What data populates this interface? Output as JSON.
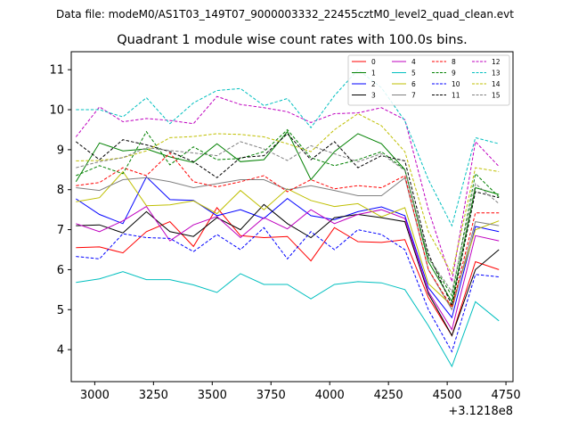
{
  "chart_data": {
    "type": "line",
    "suptitle": "Data file: modeM0/AS1T03_149T07_9000003332_22455cztM0_level2_quad_clean.evt",
    "title": "Quadrant 1 module wise count rates with 100.0s bins.",
    "xlabel": "",
    "ylabel": "",
    "x_offset_label": "+3.1218e8",
    "xlim": [
      2900,
      4780
    ],
    "ylim": [
      3.2,
      11.45
    ],
    "xticks": [
      3000,
      3250,
      3500,
      3750,
      4000,
      4250,
      4500,
      4750
    ],
    "yticks": [
      4,
      5,
      6,
      7,
      8,
      9,
      10,
      11
    ],
    "grid": false,
    "legend_position": "top-right",
    "x": [
      2920,
      3020,
      3120,
      3220,
      3320,
      3420,
      3520,
      3620,
      3720,
      3820,
      3920,
      4020,
      4120,
      4220,
      4320,
      4420,
      4520,
      4620,
      4720
    ],
    "series": [
      {
        "name": "0",
        "color": "#ff0000",
        "dash": false,
        "values": [
          6.55,
          6.57,
          6.42,
          6.95,
          7.2,
          6.58,
          7.55,
          6.85,
          6.8,
          6.83,
          6.22,
          7.05,
          6.7,
          6.68,
          6.75,
          5.3,
          4.35,
          6.2,
          6.0
        ]
      },
      {
        "name": "1",
        "color": "#008000",
        "dash": false,
        "values": [
          8.2,
          9.17,
          8.97,
          9.02,
          8.82,
          8.68,
          9.15,
          8.7,
          8.75,
          9.45,
          8.25,
          8.95,
          9.4,
          9.15,
          8.5,
          6.2,
          5.2,
          8.05,
          7.88
        ]
      },
      {
        "name": "2",
        "color": "#0000ff",
        "dash": false,
        "values": [
          7.77,
          7.38,
          7.15,
          8.32,
          7.75,
          7.73,
          7.35,
          7.5,
          7.28,
          7.78,
          7.35,
          7.25,
          7.45,
          7.57,
          7.35,
          5.55,
          4.8,
          7.08,
          6.95
        ]
      },
      {
        "name": "3",
        "color": "#000000",
        "dash": false,
        "values": [
          7.1,
          7.12,
          6.92,
          7.45,
          6.95,
          6.83,
          7.3,
          7.0,
          7.63,
          7.15,
          6.8,
          7.3,
          7.38,
          7.3,
          7.2,
          5.4,
          4.35,
          6.0,
          6.5
        ]
      },
      {
        "name": "4",
        "color": "#bf00bf",
        "dash": false,
        "values": [
          7.15,
          6.95,
          7.22,
          7.58,
          6.72,
          7.12,
          7.33,
          6.8,
          7.3,
          7.02,
          7.5,
          7.15,
          7.38,
          7.5,
          7.28,
          5.45,
          4.5,
          6.85,
          6.72
        ]
      },
      {
        "name": "5",
        "color": "#00bfbf",
        "dash": false,
        "values": [
          5.68,
          5.77,
          5.95,
          5.75,
          5.75,
          5.62,
          5.43,
          5.9,
          5.63,
          5.63,
          5.27,
          5.63,
          5.7,
          5.67,
          5.5,
          4.6,
          3.58,
          5.2,
          4.72
        ]
      },
      {
        "name": "6",
        "color": "#bfbf00",
        "dash": false,
        "values": [
          7.7,
          7.8,
          8.45,
          7.6,
          7.62,
          7.72,
          7.4,
          7.98,
          7.5,
          8.02,
          7.73,
          7.58,
          7.65,
          7.32,
          7.55,
          5.65,
          5.1,
          7.0,
          7.22
        ]
      },
      {
        "name": "7",
        "color": "#808080",
        "dash": false,
        "values": [
          8.05,
          7.98,
          8.25,
          8.3,
          8.2,
          8.05,
          8.15,
          8.25,
          8.25,
          8.0,
          8.1,
          7.98,
          7.85,
          7.85,
          8.3,
          6.0,
          5.0,
          7.2,
          7.1
        ]
      },
      {
        "name": "8",
        "color": "#ff0000",
        "dash": true,
        "values": [
          8.1,
          8.18,
          8.55,
          8.35,
          8.92,
          8.2,
          8.07,
          8.2,
          8.35,
          7.95,
          8.25,
          8.02,
          8.1,
          8.05,
          8.35,
          6.0,
          5.05,
          7.42,
          7.42
        ]
      },
      {
        "name": "9",
        "color": "#008000",
        "dash": true,
        "values": [
          8.35,
          8.6,
          8.4,
          9.45,
          8.62,
          9.07,
          8.75,
          8.78,
          8.95,
          9.5,
          8.8,
          8.6,
          8.75,
          8.95,
          8.5,
          6.3,
          5.35,
          8.4,
          7.82
        ]
      },
      {
        "name": "10",
        "color": "#0000ff",
        "dash": true,
        "values": [
          6.33,
          6.27,
          6.9,
          6.8,
          6.78,
          6.45,
          6.88,
          6.5,
          7.05,
          6.27,
          6.95,
          6.5,
          7.0,
          6.88,
          6.5,
          5.0,
          3.95,
          5.88,
          5.82
        ]
      },
      {
        "name": "11",
        "color": "#000000",
        "dash": true,
        "values": [
          9.2,
          8.75,
          9.25,
          9.12,
          8.95,
          8.7,
          8.3,
          8.8,
          8.85,
          9.4,
          8.75,
          9.2,
          8.55,
          8.85,
          8.72,
          6.4,
          5.1,
          7.95,
          7.8
        ]
      },
      {
        "name": "12",
        "color": "#bf00bf",
        "dash": true,
        "values": [
          9.32,
          10.07,
          9.7,
          9.78,
          9.73,
          9.65,
          10.33,
          10.13,
          10.05,
          9.95,
          9.68,
          9.9,
          9.92,
          10.05,
          9.75,
          7.5,
          5.7,
          9.2,
          8.58
        ]
      },
      {
        "name": "13",
        "color": "#00bfbf",
        "dash": true,
        "values": [
          10.0,
          10.0,
          9.82,
          10.3,
          9.65,
          10.17,
          10.48,
          10.53,
          10.1,
          10.28,
          9.55,
          10.35,
          11.0,
          10.55,
          9.72,
          8.25,
          7.1,
          9.3,
          9.15
        ]
      },
      {
        "name": "14",
        "color": "#bfbf00",
        "dash": true,
        "values": [
          8.72,
          8.73,
          8.8,
          8.97,
          9.3,
          9.33,
          9.4,
          9.38,
          9.32,
          9.15,
          8.95,
          9.5,
          9.9,
          9.6,
          8.95,
          6.95,
          5.9,
          8.55,
          8.45
        ]
      },
      {
        "name": "15",
        "color": "#808080",
        "dash": true,
        "values": [
          8.55,
          8.7,
          8.8,
          9.05,
          8.98,
          8.92,
          8.85,
          9.2,
          9.02,
          8.73,
          9.1,
          8.9,
          8.7,
          8.9,
          8.48,
          6.3,
          5.45,
          8.15,
          7.65
        ]
      }
    ]
  }
}
